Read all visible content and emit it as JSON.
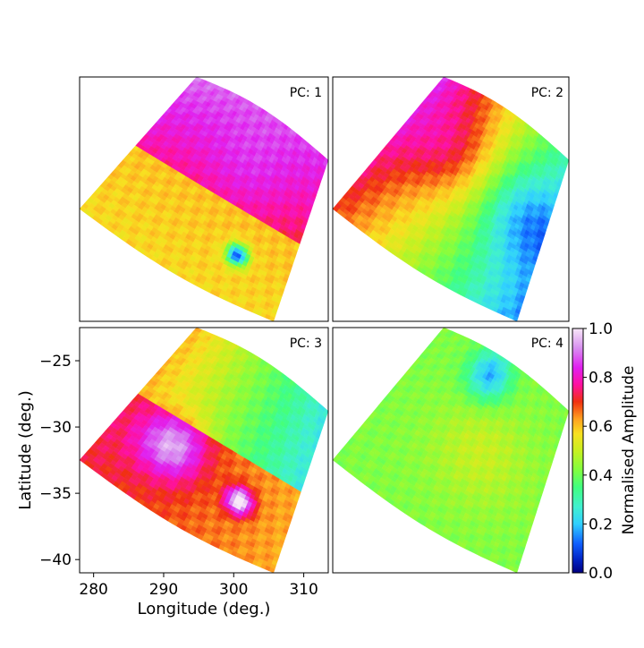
{
  "chart_data": {
    "type": "heatmap",
    "description_panels": [
      "PC: 1",
      "PC: 2",
      "PC: 3",
      "PC: 4"
    ],
    "panels": [
      {
        "label": "PC: 1",
        "field": "pc1"
      },
      {
        "label": "PC: 2",
        "field": "pc2"
      },
      {
        "label": "PC: 3",
        "field": "pc3"
      },
      {
        "label": "PC: 4",
        "field": "pc4"
      }
    ],
    "xlabel": "Longitude (deg.)",
    "ylabel": "Latitude (deg.)",
    "xlim": [
      278,
      313.5
    ],
    "ylim": [
      -41,
      -22.5
    ],
    "xticks": [
      280,
      290,
      300,
      310
    ],
    "yticks": [
      -25,
      -30,
      -35,
      -40
    ],
    "xtick_labels": [
      "280",
      "290",
      "300",
      "310"
    ],
    "ytick_labels": [
      "−25",
      "−30",
      "−35",
      "−40"
    ],
    "colorbar": {
      "label": "Normalised Amplitude",
      "range": [
        0,
        1
      ],
      "ticks": [
        "0.0",
        "0.2",
        "0.4",
        "0.6",
        "0.8",
        "1.0"
      ],
      "colormap": "gist_ncar"
    },
    "domain_corners_lonlat": {
      "top": [
        294,
        -22.5
      ],
      "right": [
        313.5,
        -28.5
      ],
      "bottom": [
        301.5,
        -41
      ],
      "left": [
        278,
        -32.2
      ]
    }
  }
}
